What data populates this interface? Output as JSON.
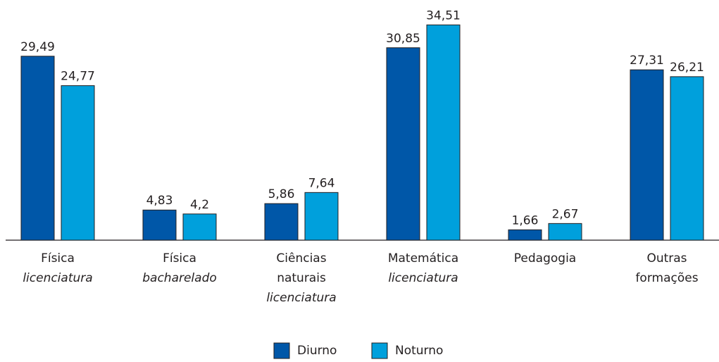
{
  "chart_data": {
    "type": "bar",
    "categories": [
      "Física",
      "Física",
      "Ciências naturais",
      "Matemática",
      "Pedagogia",
      "Outras formações"
    ],
    "category_qualifiers": [
      "licenciatura",
      "bacharelado",
      "licenciatura",
      "licenciatura",
      null,
      null
    ],
    "series": [
      {
        "name": "Diurno",
        "color": "#0057a8",
        "values": [
          29.49,
          4.83,
          5.86,
          30.85,
          1.66,
          27.31
        ],
        "value_labels": [
          "29,49",
          "4,83",
          "5,86",
          "30,85",
          "1,66",
          "27,31"
        ]
      },
      {
        "name": "Noturno",
        "color": "#00a0dc",
        "values": [
          24.77,
          4.2,
          7.64,
          34.51,
          2.67,
          26.21
        ],
        "value_labels": [
          "24,77",
          "4,2",
          "7,64",
          "34,51",
          "2,67",
          "26,21"
        ]
      }
    ],
    "ylim": [
      0,
      35
    ]
  }
}
